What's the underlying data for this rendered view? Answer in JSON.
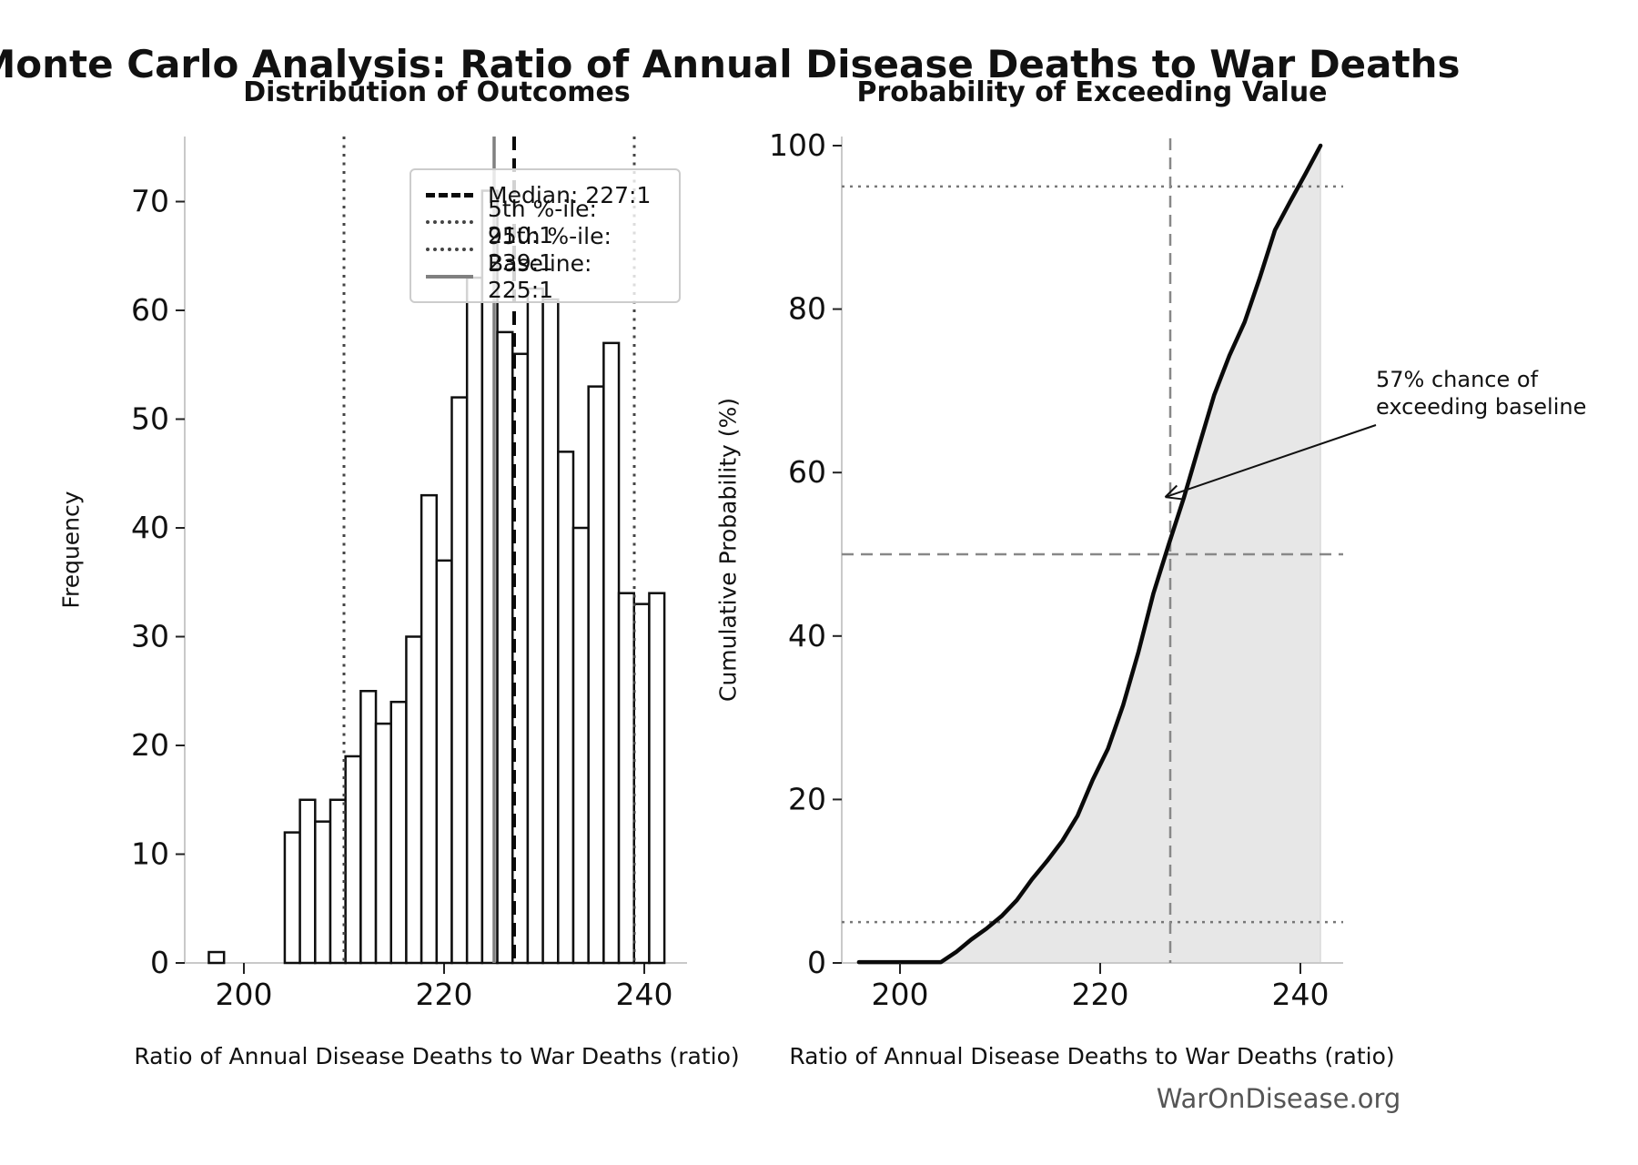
{
  "header": {
    "title": "Monte Carlo Analysis: Ratio of Annual Disease Deaths to War Deaths",
    "source": "WarOnDisease.org"
  },
  "chart_data": [
    {
      "type": "bar",
      "title": "Distribution of Outcomes",
      "xlabel": "Ratio of Annual Disease Deaths to War Deaths (ratio)",
      "ylabel": "Frequency",
      "bin_start": 196.5,
      "bin_width": 1.517,
      "values": [
        1,
        0,
        0,
        0,
        0,
        12,
        15,
        13,
        15,
        19,
        25,
        22,
        24,
        30,
        43,
        37,
        52,
        63,
        71,
        58,
        56,
        62,
        61,
        47,
        40,
        53,
        57,
        34,
        33,
        34
      ],
      "xlim": [
        194.2,
        244.3
      ],
      "ylim": [
        0,
        76
      ],
      "xticks": [
        200,
        220,
        240
      ],
      "yticks": [
        0,
        10,
        20,
        30,
        40,
        50,
        60,
        70
      ],
      "grid": false,
      "legend_position": "upper right",
      "ref_lines": {
        "median": 227,
        "p5": 210,
        "p95": 239,
        "baseline": 225
      },
      "legend": [
        {
          "name": "median",
          "label": "Median: 227:1"
        },
        {
          "name": "p5",
          "label": "5th %-ile: 210:1"
        },
        {
          "name": "p95",
          "label": "95th %-ile: 239:1"
        },
        {
          "name": "baseline",
          "label": "Baseline: 225:1"
        }
      ]
    },
    {
      "type": "line",
      "title": "Probability of Exceeding Value",
      "xlabel": "Ratio of Annual Disease Deaths to War Deaths (ratio)",
      "ylabel": "Cumulative Probability (%)",
      "xlim": [
        194.2,
        244.3
      ],
      "ylim": [
        0,
        100
      ],
      "xticks": [
        200,
        220,
        240
      ],
      "yticks": [
        0,
        20,
        40,
        60,
        80,
        100
      ],
      "grid": false,
      "fill_under_curve": true,
      "hlines_dotted": [
        5,
        95
      ],
      "hline_dashed": 50,
      "vline_dashed": 227,
      "annotation": {
        "line1": "57% chance of",
        "line2": "exceeding baseline",
        "point_x": 226.5,
        "point_y": 57
      }
    }
  ]
}
